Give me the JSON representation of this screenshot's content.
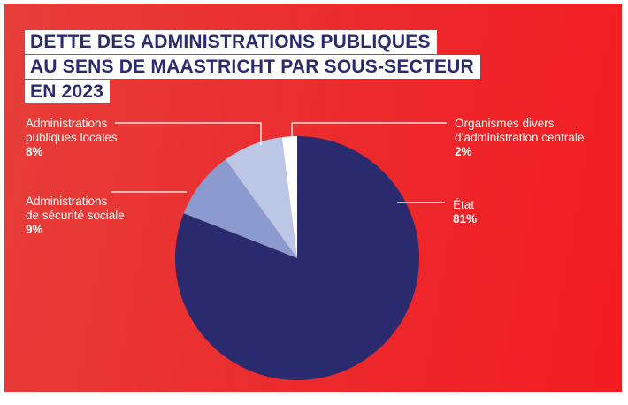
{
  "chart_data": {
    "type": "pie",
    "title": "DETTE DES ADMINISTRATIONS PUBLIQUES AU SENS DE MAASTRICHT PAR SOUS-SECTEUR EN 2023",
    "title_lines": [
      "DETTE DES ADMINISTRATIONS PUBLIQUES",
      "AU SENS DE MAASTRICHT PAR SOUS-SECTEUR",
      "EN 2023"
    ],
    "unit": "%",
    "slices": [
      {
        "name": "État",
        "label_lines": [
          "État"
        ],
        "value": 81,
        "value_label": "81%",
        "color": "#2a2a6e"
      },
      {
        "name": "Administrations de sécurité sociale",
        "label_lines": [
          "Administrations",
          "de sécurité sociale"
        ],
        "value": 9,
        "value_label": "9%",
        "color": "#8b9bcf"
      },
      {
        "name": "Administrations publiques locales",
        "label_lines": [
          "Administrations",
          "publiques locales"
        ],
        "value": 8,
        "value_label": "8%",
        "color": "#bcc7e6"
      },
      {
        "name": "Organismes divers d'administration centrale",
        "label_lines": [
          "Organismes divers",
          "d’administration centrale"
        ],
        "value": 2,
        "value_label": "2%",
        "color": "#ffffff"
      }
    ]
  },
  "colors": {
    "background": "#ec2a2c",
    "title_text": "#2a2a6e",
    "title_bg": "#ffffff"
  }
}
